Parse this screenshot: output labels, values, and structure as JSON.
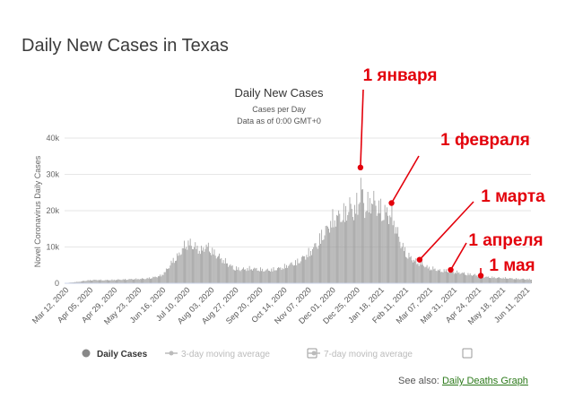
{
  "page": {
    "title": "Daily New Cases in Texas",
    "see_also_label": "See also:",
    "see_also_link": "Daily Deaths Graph"
  },
  "colors": {
    "bars": "#999999",
    "annotation": "#e3000b",
    "link": "#2c7a1a",
    "legend_inactive": "#bbbbbb"
  },
  "legend": [
    {
      "label": "Daily Cases",
      "active": true,
      "marker": "circle",
      "checkbox": false
    },
    {
      "label": "3-day moving average",
      "active": false,
      "marker": "line-dot",
      "checkbox": true
    },
    {
      "label": "7-day moving average",
      "active": false,
      "marker": "line-dot",
      "checkbox": true
    }
  ],
  "annotations": [
    {
      "label": "1 января",
      "date": "2021-01-01",
      "y": 31900
    },
    {
      "label": "1 февраля",
      "date": "2021-02-01",
      "y": 22100
    },
    {
      "label": "1 марта",
      "date": "2021-03-01",
      "y": 6500
    },
    {
      "label": "1 апреля",
      "date": "2021-04-01",
      "y": 3700
    },
    {
      "label": "1 мая",
      "date": "2021-05-01",
      "y": 2100
    }
  ],
  "chart_data": {
    "type": "bar",
    "title": "Daily New Cases",
    "subtitle": "Cases per Day",
    "subtitle2": "Data as of 0:00 GMT+0",
    "xlabel": "",
    "ylabel": "Novel Coronavirus Daily Cases",
    "ylim": [
      0,
      40000
    ],
    "yticks": [
      "0",
      "10k",
      "20k",
      "30k",
      "40k"
    ],
    "grid": true,
    "legend_position": "bottom",
    "x_ticks": [
      "Mar 12, 2020",
      "Apr 05, 2020",
      "Apr 29, 2020",
      "May 23, 2020",
      "Jun 16, 2020",
      "Jul 10, 2020",
      "Aug 03, 2020",
      "Aug 27, 2020",
      "Sep 20, 2020",
      "Oct 14, 2020",
      "Nov 07, 2020",
      "Dec 01, 2020",
      "Dec 25, 2020",
      "Jan 18, 2021",
      "Feb 11, 2021",
      "Mar 07, 2021",
      "Mar 31, 2021",
      "Apr 24, 2021",
      "May 18, 2021",
      "Jun 11, 2021"
    ],
    "start_date": "2020-03-12",
    "end_date": "2021-06-20",
    "series": [
      {
        "name": "Daily Cases",
        "x": [
          "2020-03-12",
          "2020-03-20",
          "2020-03-28",
          "2020-04-05",
          "2020-04-13",
          "2020-04-21",
          "2020-04-29",
          "2020-05-07",
          "2020-05-15",
          "2020-05-23",
          "2020-05-31",
          "2020-06-08",
          "2020-06-16",
          "2020-06-20",
          "2020-06-24",
          "2020-06-28",
          "2020-07-02",
          "2020-07-06",
          "2020-07-10",
          "2020-07-14",
          "2020-07-18",
          "2020-07-22",
          "2020-07-26",
          "2020-07-30",
          "2020-08-03",
          "2020-08-07",
          "2020-08-11",
          "2020-08-15",
          "2020-08-19",
          "2020-08-23",
          "2020-08-27",
          "2020-09-04",
          "2020-09-12",
          "2020-09-20",
          "2020-09-28",
          "2020-10-06",
          "2020-10-14",
          "2020-10-22",
          "2020-10-30",
          "2020-11-07",
          "2020-11-11",
          "2020-11-15",
          "2020-11-19",
          "2020-11-23",
          "2020-11-27",
          "2020-12-01",
          "2020-12-05",
          "2020-12-09",
          "2020-12-13",
          "2020-12-17",
          "2020-12-21",
          "2020-12-25",
          "2020-12-29",
          "2021-01-01",
          "2021-01-05",
          "2021-01-09",
          "2021-01-13",
          "2021-01-17",
          "2021-01-21",
          "2021-01-25",
          "2021-02-01",
          "2021-02-05",
          "2021-02-09",
          "2021-02-13",
          "2021-02-17",
          "2021-02-21",
          "2021-02-25",
          "2021-03-01",
          "2021-03-05",
          "2021-03-09",
          "2021-03-13",
          "2021-03-17",
          "2021-03-21",
          "2021-03-25",
          "2021-03-29",
          "2021-04-01",
          "2021-04-09",
          "2021-04-17",
          "2021-04-25",
          "2021-05-01",
          "2021-05-09",
          "2021-05-17",
          "2021-05-25",
          "2021-06-02",
          "2021-06-10",
          "2021-06-20"
        ],
        "y": [
          100,
          300,
          600,
          1000,
          1100,
          1000,
          1100,
          1200,
          1300,
          1400,
          1500,
          1900,
          2500,
          3800,
          5500,
          7500,
          8500,
          10500,
          12500,
          13000,
          12000,
          11500,
          10500,
          12000,
          11500,
          10000,
          9000,
          8000,
          7000,
          6000,
          5000,
          4500,
          4800,
          4600,
          4200,
          4500,
          5000,
          6000,
          7000,
          9000,
          10000,
          11500,
          13000,
          15500,
          17000,
          19000,
          21000,
          21500,
          22000,
          23000,
          25000,
          23000,
          26000,
          31900,
          24000,
          26000,
          27000,
          25000,
          24000,
          23000,
          22100,
          18000,
          14000,
          11000,
          9000,
          8000,
          7000,
          6500,
          6000,
          5000,
          4800,
          4500,
          4000,
          4200,
          3900,
          3700,
          3500,
          3000,
          2700,
          2100,
          2000,
          1800,
          1700,
          1500,
          1400,
          1300
        ]
      }
    ]
  }
}
